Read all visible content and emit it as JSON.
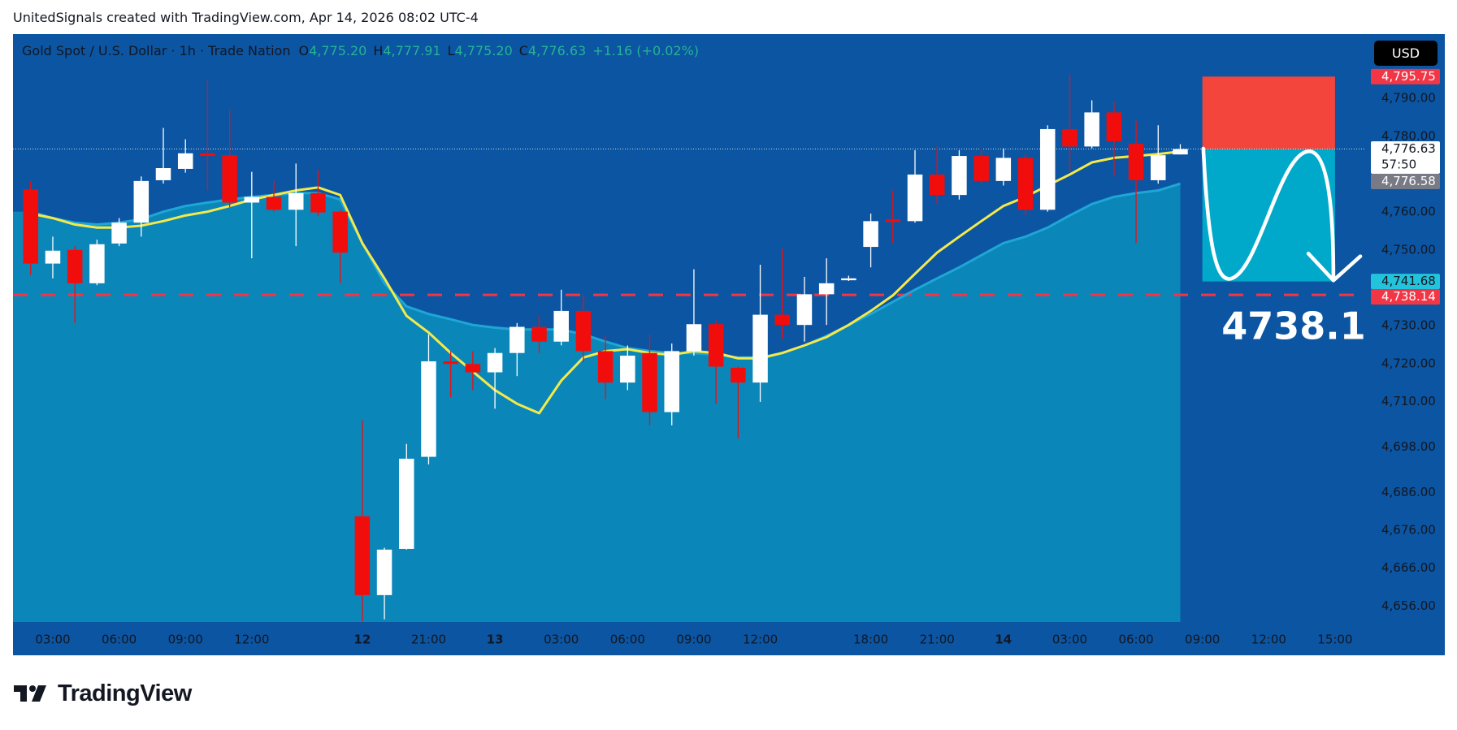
{
  "header": {
    "text": "UnitedSignals created with TradingView.com, Apr 14, 2026 08:02 UTC-4"
  },
  "footer": {
    "brand": "TradingView"
  },
  "chart_data": {
    "type": "candlestick",
    "title": "Gold Spot / U.S. Dollar · 1h · Trade Nation",
    "ohlc": [
      {
        "key": "O",
        "text": "4,775.20"
      },
      {
        "key": "H",
        "text": "4,777.91"
      },
      {
        "key": "L",
        "text": "4,775.20"
      },
      {
        "key": "C",
        "text": "4,776.63"
      }
    ],
    "change": "+1.16 (+0.02%)",
    "currency": "USD",
    "up_color": "#ffffff",
    "down_color": "#f20d0d",
    "open": [
      4766.0,
      4746.4,
      4750.0,
      4741.2,
      4751.7,
      4757.2,
      4768.4,
      4771.4,
      4775.5,
      4775.0,
      4762.5,
      4764.0,
      4760.6,
      4765.0,
      4760.1,
      4679.7,
      4658.9,
      4671.1,
      4695.4,
      4720.6,
      4719.9,
      4717.7,
      4722.8,
      4729.7,
      4725.8,
      4733.9,
      4723.3,
      4715.0,
      4722.8,
      4707.2,
      4723.3,
      4730.4,
      4718.9,
      4715.0,
      4732.9,
      4730.2,
      4738.3,
      4742.0,
      4750.8,
      4758.1,
      4757.6,
      4769.9,
      4764.5,
      4774.8,
      4768.2,
      4774.3,
      4760.6,
      4781.9,
      4777.3,
      4786.3,
      4778.0,
      4768.4,
      4775.2
    ],
    "high": [
      4768.2,
      4753.5,
      4751.0,
      4752.7,
      4758.4,
      4769.4,
      4782.2,
      4779.2,
      4794.9,
      4787.1,
      4770.6,
      4768.2,
      4772.8,
      4771.1,
      4760.6,
      4705.0,
      4671.4,
      4698.8,
      4727.7,
      4723.3,
      4723.3,
      4724.1,
      4730.7,
      4732.6,
      4739.5,
      4738.0,
      4727.3,
      4724.8,
      4727.7,
      4725.3,
      4744.9,
      4731.4,
      4719.2,
      4746.1,
      4750.3,
      4742.9,
      4747.8,
      4743.2,
      4759.6,
      4765.7,
      4776.3,
      4777.3,
      4776.3,
      4776.8,
      4776.8,
      4775.5,
      4782.9,
      4796.4,
      4789.5,
      4789.0,
      4784.1,
      4782.9,
      4777.91
    ],
    "low": [
      4743.4,
      4742.5,
      4730.7,
      4740.7,
      4751.0,
      4753.5,
      4767.5,
      4770.4,
      4765.7,
      4761.3,
      4747.8,
      4760.1,
      4751.0,
      4758.9,
      4741.2,
      4652.0,
      4652.5,
      4670.9,
      4693.4,
      4711.1,
      4713.0,
      4708.1,
      4716.7,
      4722.8,
      4724.8,
      4720.4,
      4710.6,
      4713.0,
      4703.7,
      4703.7,
      4722.1,
      4709.4,
      4700.3,
      4709.9,
      4726.5,
      4725.8,
      4730.2,
      4741.8,
      4745.4,
      4751.8,
      4757.2,
      4762.1,
      4763.3,
      4767.5,
      4767.0,
      4759.1,
      4760.1,
      4770.6,
      4776.8,
      4769.4,
      4751.8,
      4767.5,
      4775.2
    ],
    "close": [
      4746.4,
      4749.8,
      4741.2,
      4751.5,
      4757.2,
      4768.2,
      4771.6,
      4775.5,
      4774.8,
      4762.5,
      4764.0,
      4760.6,
      4765.0,
      4759.9,
      4749.3,
      4658.9,
      4670.9,
      4694.9,
      4720.6,
      4719.9,
      4717.7,
      4722.8,
      4729.7,
      4725.8,
      4733.9,
      4723.3,
      4715.0,
      4722.1,
      4707.2,
      4723.3,
      4730.4,
      4719.2,
      4715.0,
      4732.9,
      4730.2,
      4738.3,
      4741.2,
      4742.5,
      4757.6,
      4757.4,
      4769.9,
      4764.5,
      4774.8,
      4768.2,
      4774.3,
      4760.6,
      4781.9,
      4777.3,
      4786.3,
      4778.7,
      4768.4,
      4775.0,
      4776.63
    ],
    "moving_averages": [
      {
        "color": "#1fa6d6",
        "area_color": "#0a86b9",
        "area": true,
        "values": [
          4760.1,
          4758.4,
          4757.2,
          4756.7,
          4757.2,
          4758.1,
          4760.1,
          4761.6,
          4762.5,
          4763.3,
          4764.0,
          4764.5,
          4765.0,
          4765.0,
          4763.3,
          4751.8,
          4741.2,
          4735.1,
          4733.1,
          4731.7,
          4730.2,
          4729.5,
          4729.0,
          4729.0,
          4729.0,
          4727.7,
          4725.8,
          4724.1,
          4723.3,
          4722.8,
          4722.8,
          4722.3,
          4721.6,
          4721.6,
          4722.8,
          4724.8,
          4727.3,
          4730.2,
          4733.1,
          4736.3,
          4739.5,
          4742.5,
          4745.4,
          4748.6,
          4751.8,
          4753.5,
          4755.9,
          4759.1,
          4762.1,
          4764.0,
          4765.0,
          4765.7,
          4767.5
        ]
      },
      {
        "color": "#f5e94a",
        "area": false,
        "values": [
          4759.6,
          4758.4,
          4756.7,
          4755.9,
          4755.9,
          4756.4,
          4757.6,
          4759.1,
          4760.1,
          4761.6,
          4763.3,
          4764.5,
          4765.7,
          4766.5,
          4764.5,
          4751.8,
          4742.5,
          4732.6,
          4728.2,
          4722.8,
          4717.9,
          4713.0,
          4709.4,
          4706.9,
          4715.5,
          4721.6,
          4723.3,
          4723.8,
          4722.8,
          4722.3,
          4723.3,
          4722.8,
          4721.4,
          4721.4,
          4722.8,
          4724.8,
          4727.0,
          4730.2,
          4733.9,
          4738.0,
          4743.7,
          4749.3,
          4753.5,
          4757.6,
          4761.6,
          4764.0,
          4767.0,
          4769.9,
          4773.1,
          4774.3,
          4774.8,
          4775.3,
          4776.0
        ]
      }
    ],
    "xlim": [
      -0.8,
      60.4
    ],
    "xticks": [
      {
        "value": 1,
        "label": "03:00"
      },
      {
        "value": 4,
        "label": "06:00"
      },
      {
        "value": 7,
        "label": "09:00"
      },
      {
        "value": 10,
        "label": "12:00"
      },
      {
        "value": 15,
        "label": "12"
      },
      {
        "value": 18,
        "label": "21:00"
      },
      {
        "value": 21,
        "label": "13"
      },
      {
        "value": 24,
        "label": "03:00"
      },
      {
        "value": 27,
        "label": "06:00"
      },
      {
        "value": 30,
        "label": "09:00"
      },
      {
        "value": 33,
        "label": "12:00"
      },
      {
        "value": 38,
        "label": "18:00"
      },
      {
        "value": 41,
        "label": "21:00"
      },
      {
        "value": 44,
        "label": "14"
      },
      {
        "value": 47,
        "label": "03:00"
      },
      {
        "value": 50,
        "label": "06:00"
      },
      {
        "value": 53,
        "label": "09:00"
      },
      {
        "value": 56,
        "label": "12:00"
      },
      {
        "value": 59,
        "label": "15:00"
      }
    ],
    "ylim": [
      4651.8,
      4806.9
    ],
    "yticks": [
      {
        "value": 4656,
        "label": "4,656.00"
      },
      {
        "value": 4666,
        "label": "4,666.00"
      },
      {
        "value": 4676,
        "label": "4,676.00"
      },
      {
        "value": 4686,
        "label": "4,686.00"
      },
      {
        "value": 4698,
        "label": "4,698.00"
      },
      {
        "value": 4710,
        "label": "4,710.00"
      },
      {
        "value": 4720,
        "label": "4,720.00"
      },
      {
        "value": 4730,
        "label": "4,730.00"
      },
      {
        "value": 4750,
        "label": "4,750.00"
      },
      {
        "value": 4760,
        "label": "4,760.00"
      },
      {
        "value": 4780,
        "label": "4,780.00"
      },
      {
        "value": 4790,
        "label": "4,790.00"
      }
    ],
    "price_labels": [
      {
        "value": 4795.75,
        "label": "4,795.75",
        "color": "#f23645",
        "text_color": "#ffffff"
      },
      {
        "value": 4776.63,
        "label": "4,776.63",
        "countdown": "57:50",
        "color": "#ffffff",
        "text_color": "#131722"
      },
      {
        "value": 4776.58,
        "label": "4,776.58",
        "color": "#787b86",
        "text_color": "#ffffff"
      },
      {
        "value": 4741.68,
        "label": "4,741.68",
        "color": "#22c3dc",
        "text_color": "#131722"
      },
      {
        "value": 4738.14,
        "label": "4,738.14",
        "color": "#f23645",
        "text_color": "#ffffff"
      }
    ],
    "position": {
      "x_start": 53,
      "x_end": 59,
      "stop": 4795.75,
      "entry": 4776.63,
      "target": 4741.68,
      "stop_color": "#f4453c",
      "target_color": "#00a9c9"
    },
    "current_price": 4776.63,
    "level": {
      "value": 4738.14,
      "label": "4738.1",
      "color": "#f23645"
    }
  }
}
